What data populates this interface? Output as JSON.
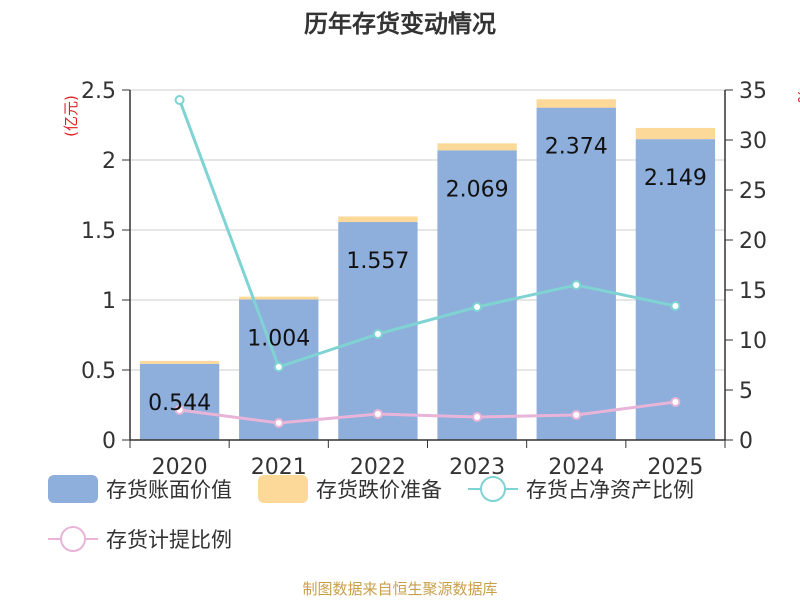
{
  "title": "历年存货变动情况",
  "footer": "制图数据来自恒生聚源数据库",
  "left_axis_unit": "(亿元)",
  "right_axis_unit": "%",
  "chart_data": {
    "type": "bar",
    "categories": [
      "2020",
      "2021",
      "2022",
      "2023",
      "2024",
      "2025"
    ],
    "series": [
      {
        "name": "存货账面价值",
        "kind": "bar",
        "axis": "left",
        "stack": "inv",
        "color": "#8eaedb",
        "values": [
          0.544,
          1.004,
          1.557,
          2.069,
          2.374,
          2.149
        ],
        "labels": [
          "0.544",
          "1.004",
          "1.557",
          "2.069",
          "2.374",
          "2.149"
        ]
      },
      {
        "name": "存货跌价准备",
        "kind": "bar",
        "axis": "left",
        "stack": "inv",
        "color": "#fdd999",
        "values": [
          0.02,
          0.02,
          0.04,
          0.05,
          0.06,
          0.08
        ]
      },
      {
        "name": "存货占净资产比例",
        "kind": "line",
        "axis": "right",
        "color": "#7fd3d3",
        "values": [
          34,
          7.3,
          10.6,
          13.3,
          15.5,
          13.4
        ]
      },
      {
        "name": "存货计提比例",
        "kind": "line",
        "axis": "right",
        "color": "#e8b4d8",
        "values": [
          3,
          1.7,
          2.6,
          2.3,
          2.5,
          3.8
        ]
      }
    ],
    "left_axis": {
      "ylim": [
        0,
        2.5
      ],
      "ticks": [
        "0",
        "0.5",
        "1",
        "1.5",
        "2",
        "2.5"
      ]
    },
    "right_axis": {
      "ylim": [
        0,
        35
      ],
      "ticks": [
        "0",
        "5",
        "10",
        "15",
        "20",
        "25",
        "30",
        "35"
      ]
    },
    "grid": true,
    "legend_position": "bottom"
  }
}
